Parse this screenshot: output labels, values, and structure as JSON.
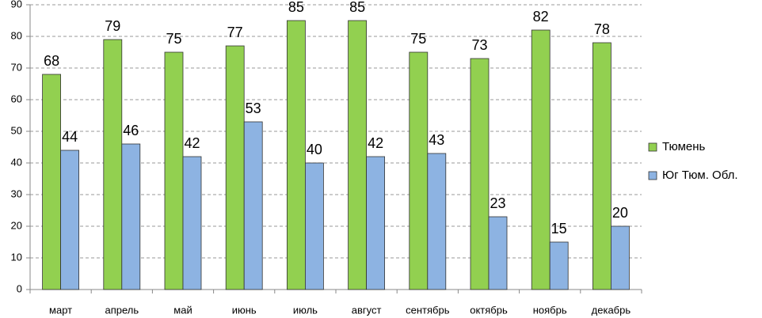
{
  "chart_data": {
    "type": "bar",
    "categories": [
      "март",
      "апрель",
      "май",
      "июнь",
      "июль",
      "август",
      "сентябрь",
      "октябрь",
      "ноябрь",
      "декабрь"
    ],
    "series": [
      {
        "name": "Тюмень",
        "color": "#92d050",
        "values": [
          68,
          79,
          75,
          77,
          85,
          85,
          75,
          73,
          82,
          78
        ]
      },
      {
        "name": "Юг Тюм. Обл.",
        "color": "#8db3e2",
        "values": [
          44,
          46,
          42,
          53,
          40,
          42,
          43,
          23,
          15,
          20
        ]
      }
    ],
    "ylim": [
      0,
      90
    ],
    "yticks": [
      0,
      10,
      20,
      30,
      40,
      50,
      60,
      70,
      80,
      90
    ],
    "grid": true,
    "legend": "right"
  }
}
